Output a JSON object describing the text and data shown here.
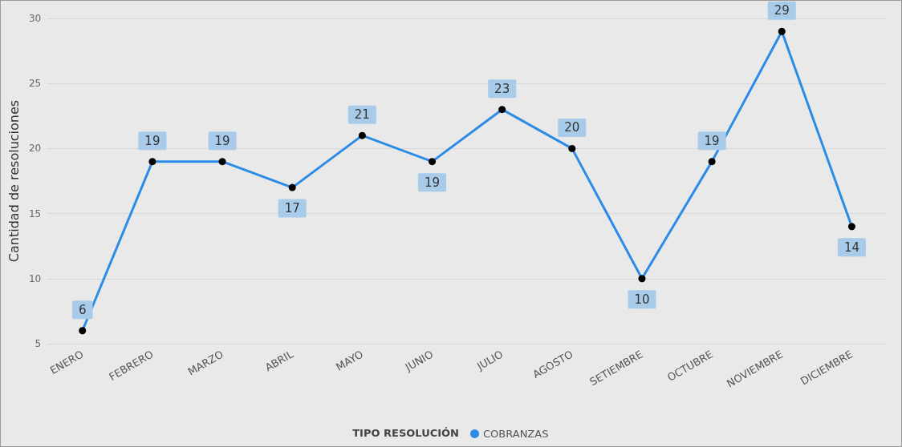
{
  "chart_data": {
    "type": "line",
    "ylabel": "Cantidad de resoluciones",
    "legend_title": "TIPO RESOLUCIÓN",
    "categories": [
      "ENERO",
      "FEBRERO",
      "MARZO",
      "ABRIL",
      "MAYO",
      "JUNIO",
      "JULIO",
      "AGOSTO",
      "SETIEMBRE",
      "OCTUBRE",
      "NOVIEMBRE",
      "DICIEMBRE"
    ],
    "series": [
      {
        "name": "COBRANZAS",
        "color": "#2b8be6",
        "values": [
          6,
          19,
          19,
          17,
          21,
          19,
          23,
          20,
          10,
          19,
          29,
          14
        ]
      }
    ],
    "ylim": [
      5,
      30
    ],
    "yticks": [
      5,
      10,
      15,
      20,
      25,
      30
    ],
    "grid": "y",
    "legend": "bottom",
    "marker": "circle",
    "line_style": "solid",
    "data_labels": true
  }
}
